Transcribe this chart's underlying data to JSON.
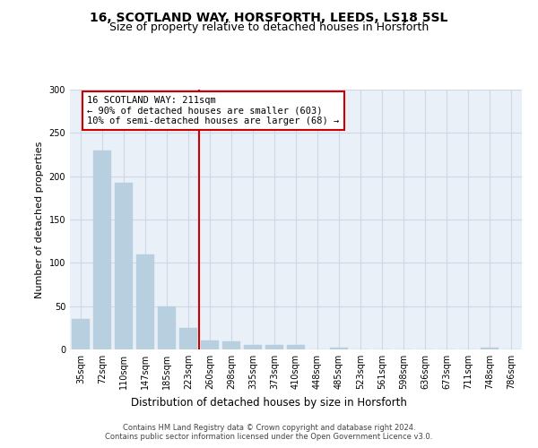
{
  "title": "16, SCOTLAND WAY, HORSFORTH, LEEDS, LS18 5SL",
  "subtitle": "Size of property relative to detached houses in Horsforth",
  "xlabel_bottom": "Distribution of detached houses by size in Horsforth",
  "ylabel": "Number of detached properties",
  "categories": [
    "35sqm",
    "72sqm",
    "110sqm",
    "147sqm",
    "185sqm",
    "223sqm",
    "260sqm",
    "298sqm",
    "335sqm",
    "373sqm",
    "410sqm",
    "448sqm",
    "485sqm",
    "523sqm",
    "561sqm",
    "598sqm",
    "636sqm",
    "673sqm",
    "711sqm",
    "748sqm",
    "786sqm"
  ],
  "values": [
    35,
    230,
    192,
    110,
    50,
    25,
    10,
    9,
    5,
    5,
    5,
    0,
    2,
    0,
    0,
    0,
    0,
    0,
    0,
    2,
    0
  ],
  "bar_color": "#b8cfe0",
  "bar_edgecolor": "#b8cfe0",
  "vline_x": 5.5,
  "vline_color": "#cc0000",
  "annotation_text": "16 SCOTLAND WAY: 211sqm\n← 90% of detached houses are smaller (603)\n10% of semi-detached houses are larger (68) →",
  "annotation_box_color": "#ffffff",
  "annotation_box_edgecolor": "#cc0000",
  "ylim": [
    0,
    300
  ],
  "yticks": [
    0,
    50,
    100,
    150,
    200,
    250,
    300
  ],
  "grid_color": "#d0d8e8",
  "background_color": "#eaf0f8",
  "footer_text": "Contains HM Land Registry data © Crown copyright and database right 2024.\nContains public sector information licensed under the Open Government Licence v3.0.",
  "title_fontsize": 10,
  "subtitle_fontsize": 9,
  "tick_fontsize": 7,
  "ylabel_fontsize": 8,
  "annotation_fontsize": 7.5,
  "footer_fontsize": 6
}
